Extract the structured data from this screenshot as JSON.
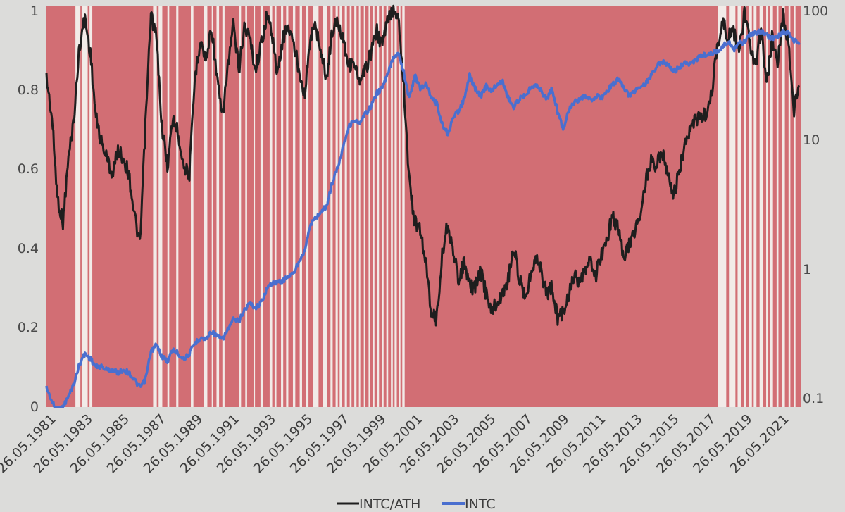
{
  "chart_data": {
    "type": "line",
    "title": "",
    "xlabel": "",
    "ylabel": "",
    "left_axis": {
      "ticks": [
        "0",
        "0.2",
        "0.4",
        "0.6",
        "0.8",
        "1"
      ],
      "ylim": [
        0,
        1
      ]
    },
    "right_axis": {
      "scale": "log",
      "ticks": [
        "0.1",
        "1",
        "10",
        "100"
      ],
      "ylim": [
        0.1,
        100
      ]
    },
    "x_tick_labels": [
      "26.05.1981",
      "26.05.1983",
      "26.05.1985",
      "26.05.1987",
      "26.05.1989",
      "26.05.1991",
      "26.05.1993",
      "26.05.1995",
      "26.05.1997",
      "26.05.1999",
      "26.05.2001",
      "26.05.2003",
      "26.05.2005",
      "26.05.2007",
      "26.05.2009",
      "26.05.2011",
      "26.05.2013",
      "26.05.2015",
      "26.05.2017",
      "26.05.2019",
      "26.05.2021"
    ],
    "xlim": [
      1981.0,
      2022.2
    ],
    "legend_position": "bottom",
    "background_color": "#d26e74",
    "gap_color": "#f2ebe8",
    "series": [
      {
        "name": "INTC/ATH",
        "axis": "left",
        "color": "#1e1e1e",
        "x": [
          1981.0,
          1981.3,
          1981.6,
          1981.9,
          1982.2,
          1982.5,
          1982.8,
          1983.1,
          1983.4,
          1983.7,
          1984.0,
          1984.3,
          1984.6,
          1984.9,
          1985.2,
          1985.5,
          1985.8,
          1986.1,
          1986.4,
          1986.7,
          1987.0,
          1987.3,
          1987.6,
          1987.9,
          1988.2,
          1988.5,
          1988.8,
          1989.1,
          1989.4,
          1989.7,
          1990.0,
          1990.3,
          1990.6,
          1990.9,
          1991.2,
          1991.5,
          1991.8,
          1992.1,
          1992.4,
          1992.7,
          1993.0,
          1993.3,
          1993.6,
          1993.9,
          1994.2,
          1994.5,
          1994.8,
          1995.1,
          1995.4,
          1995.7,
          1996.0,
          1996.3,
          1996.6,
          1996.9,
          1997.2,
          1997.5,
          1997.8,
          1998.1,
          1998.4,
          1998.7,
          1999.0,
          1999.3,
          1999.6,
          1999.9,
          2000.2,
          2000.5,
          2000.8,
          2001.1,
          2001.4,
          2001.7,
          2002.0,
          2002.3,
          2002.6,
          2002.9,
          2003.2,
          2003.5,
          2003.8,
          2004.1,
          2004.4,
          2004.7,
          2005.0,
          2005.3,
          2005.6,
          2005.9,
          2006.2,
          2006.5,
          2006.8,
          2007.1,
          2007.4,
          2007.7,
          2008.0,
          2008.3,
          2008.6,
          2008.9,
          2009.2,
          2009.5,
          2009.8,
          2010.1,
          2010.4,
          2010.7,
          2011.0,
          2011.3,
          2011.6,
          2011.9,
          2012.2,
          2012.5,
          2012.8,
          2013.1,
          2013.4,
          2013.7,
          2014.0,
          2014.3,
          2014.6,
          2014.9,
          2015.2,
          2015.5,
          2015.8,
          2016.1,
          2016.4,
          2016.7,
          2017.0,
          2017.3,
          2017.6,
          2017.9,
          2018.2,
          2018.5,
          2018.8,
          2019.1,
          2019.4,
          2019.7,
          2020.0,
          2020.3,
          2020.6,
          2020.9,
          2021.2,
          2021.5,
          2021.8,
          2022.1
        ],
        "y": [
          0.82,
          0.72,
          0.52,
          0.46,
          0.62,
          0.72,
          0.9,
          0.97,
          0.88,
          0.72,
          0.66,
          0.62,
          0.58,
          0.64,
          0.62,
          0.58,
          0.48,
          0.4,
          0.7,
          0.98,
          0.92,
          0.7,
          0.6,
          0.72,
          0.68,
          0.6,
          0.58,
          0.82,
          0.92,
          0.86,
          0.95,
          0.82,
          0.72,
          0.85,
          0.95,
          0.84,
          0.95,
          0.92,
          0.84,
          0.9,
          0.97,
          0.94,
          0.82,
          0.92,
          0.95,
          0.9,
          0.84,
          0.78,
          0.92,
          0.95,
          0.88,
          0.82,
          0.94,
          0.96,
          0.92,
          0.85,
          0.86,
          0.8,
          0.84,
          0.88,
          0.94,
          0.9,
          0.96,
          0.99,
          0.98,
          0.8,
          0.56,
          0.46,
          0.44,
          0.36,
          0.24,
          0.22,
          0.38,
          0.46,
          0.38,
          0.32,
          0.36,
          0.3,
          0.3,
          0.34,
          0.28,
          0.24,
          0.26,
          0.28,
          0.32,
          0.4,
          0.32,
          0.28,
          0.32,
          0.38,
          0.34,
          0.28,
          0.3,
          0.22,
          0.24,
          0.28,
          0.33,
          0.3,
          0.34,
          0.36,
          0.33,
          0.38,
          0.42,
          0.48,
          0.44,
          0.38,
          0.4,
          0.44,
          0.48,
          0.56,
          0.62,
          0.6,
          0.64,
          0.58,
          0.52,
          0.58,
          0.64,
          0.68,
          0.72,
          0.72,
          0.73,
          0.78,
          0.9,
          0.96,
          0.92,
          0.94,
          0.88,
          0.98,
          0.9,
          0.84,
          0.95,
          0.8,
          0.92,
          0.86,
          0.98,
          0.9,
          0.74,
          0.8
        ]
      },
      {
        "name": "INTC",
        "axis": "right",
        "color": "#4a6fcf",
        "x": [
          1981.0,
          1981.3,
          1981.6,
          1981.9,
          1982.2,
          1982.5,
          1982.8,
          1983.1,
          1983.4,
          1983.7,
          1984.0,
          1984.3,
          1984.6,
          1984.9,
          1985.2,
          1985.5,
          1985.8,
          1986.1,
          1986.4,
          1986.7,
          1987.0,
          1987.3,
          1987.6,
          1987.9,
          1988.2,
          1988.5,
          1988.8,
          1989.1,
          1989.4,
          1989.7,
          1990.0,
          1990.3,
          1990.6,
          1990.9,
          1991.2,
          1991.5,
          1991.8,
          1992.1,
          1992.4,
          1992.7,
          1993.0,
          1993.3,
          1993.6,
          1993.9,
          1994.2,
          1994.5,
          1994.8,
          1995.1,
          1995.4,
          1995.7,
          1996.0,
          1996.3,
          1996.6,
          1996.9,
          1997.2,
          1997.5,
          1997.8,
          1998.1,
          1998.4,
          1998.7,
          1999.0,
          1999.3,
          1999.6,
          1999.9,
          2000.2,
          2000.5,
          2000.8,
          2001.1,
          2001.4,
          2001.7,
          2002.0,
          2002.3,
          2002.6,
          2002.9,
          2003.2,
          2003.5,
          2003.8,
          2004.1,
          2004.4,
          2004.7,
          2005.0,
          2005.3,
          2005.6,
          2005.9,
          2006.2,
          2006.5,
          2006.8,
          2007.1,
          2007.4,
          2007.7,
          2008.0,
          2008.3,
          2008.6,
          2008.9,
          2009.2,
          2009.5,
          2009.8,
          2010.1,
          2010.4,
          2010.7,
          2011.0,
          2011.3,
          2011.6,
          2011.9,
          2012.2,
          2012.5,
          2012.8,
          2013.1,
          2013.4,
          2013.7,
          2014.0,
          2014.3,
          2014.6,
          2014.9,
          2015.2,
          2015.5,
          2015.8,
          2016.1,
          2016.4,
          2016.7,
          2017.0,
          2017.3,
          2017.6,
          2017.9,
          2018.2,
          2018.5,
          2018.8,
          2019.1,
          2019.4,
          2019.7,
          2020.0,
          2020.3,
          2020.6,
          2020.9,
          2021.2,
          2021.5,
          2021.8,
          2022.1
        ],
        "y": [
          0.14,
          0.11,
          0.09,
          0.1,
          0.12,
          0.15,
          0.21,
          0.25,
          0.23,
          0.2,
          0.2,
          0.19,
          0.19,
          0.18,
          0.19,
          0.18,
          0.16,
          0.14,
          0.16,
          0.26,
          0.29,
          0.24,
          0.22,
          0.27,
          0.25,
          0.23,
          0.25,
          0.3,
          0.33,
          0.32,
          0.37,
          0.34,
          0.32,
          0.38,
          0.45,
          0.44,
          0.53,
          0.6,
          0.55,
          0.6,
          0.75,
          0.85,
          0.85,
          0.88,
          0.95,
          1.0,
          1.25,
          1.5,
          2.3,
          2.6,
          2.9,
          3.2,
          4.8,
          6.2,
          9.0,
          12.5,
          14.0,
          13.0,
          15.5,
          17.5,
          22.0,
          24.0,
          30.0,
          40.0,
          45.0,
          32.0,
          20.0,
          30.0,
          24.0,
          26.0,
          21.0,
          18.5,
          13.0,
          11.0,
          14.5,
          16.5,
          20.0,
          30.0,
          24.0,
          21.0,
          25.0,
          23.0,
          26.0,
          27.0,
          20.5,
          17.5,
          20.0,
          21.5,
          24.0,
          26.0,
          23.0,
          20.0,
          24.0,
          16.0,
          12.0,
          16.5,
          19.0,
          19.5,
          21.0,
          19.5,
          21.0,
          20.5,
          23.0,
          26.0,
          28.0,
          25.0,
          21.0,
          23.0,
          25.0,
          26.0,
          30.5,
          35.0,
          38.5,
          36.0,
          32.0,
          34.0,
          37.0,
          36.0,
          39.0,
          42.0,
          43.0,
          44.0,
          46.0,
          49.0,
          54.0,
          47.0,
          52.0,
          53.0,
          60.0,
          62.0,
          65.0,
          60.0,
          57.0,
          59.0,
          64.0,
          62.0,
          55.0,
          51.0
        ]
      }
    ],
    "gaps": [
      [
        1982.58,
        1982.85
      ],
      [
        1982.92,
        1983.25
      ],
      [
        1983.35,
        1983.5
      ],
      [
        1986.82,
        1987.02
      ],
      [
        1987.12,
        1987.32
      ],
      [
        1987.6,
        1987.7
      ],
      [
        1988.08,
        1988.2
      ],
      [
        1988.88,
        1989.02
      ],
      [
        1989.6,
        1989.78
      ],
      [
        1990.02,
        1990.1
      ],
      [
        1990.28,
        1990.42
      ],
      [
        1990.6,
        1990.72
      ],
      [
        1991.5,
        1991.62
      ],
      [
        1991.85,
        1991.95
      ],
      [
        1992.3,
        1992.38
      ],
      [
        1992.68,
        1992.8
      ],
      [
        1993.18,
        1993.32
      ],
      [
        1993.45,
        1993.55
      ],
      [
        1993.8,
        1993.92
      ],
      [
        1994.08,
        1994.2
      ],
      [
        1994.45,
        1994.58
      ],
      [
        1994.82,
        1994.95
      ],
      [
        1995.15,
        1995.3
      ],
      [
        1995.55,
        1995.85
      ],
      [
        1996.1,
        1996.3
      ],
      [
        1996.5,
        1996.62
      ],
      [
        1996.78,
        1996.9
      ],
      [
        1997.0,
        1997.12
      ],
      [
        1997.28,
        1997.4
      ],
      [
        1997.55,
        1997.65
      ],
      [
        1997.8,
        1997.92
      ],
      [
        1998.05,
        1998.12
      ],
      [
        1998.32,
        1998.4
      ],
      [
        1998.58,
        1998.66
      ],
      [
        1998.82,
        1998.9
      ],
      [
        1999.05,
        1999.15
      ],
      [
        1999.3,
        1999.4
      ],
      [
        1999.55,
        1999.65
      ],
      [
        1999.8,
        1999.9
      ],
      [
        2000.0,
        2000.12
      ],
      [
        2000.22,
        2000.32
      ],
      [
        2000.42,
        2000.55
      ],
      [
        2017.65,
        2018.1
      ],
      [
        2018.25,
        2018.6
      ],
      [
        2018.72,
        2018.9
      ],
      [
        2019.05,
        2019.2
      ],
      [
        2019.35,
        2019.5
      ],
      [
        2019.6,
        2019.75
      ],
      [
        2019.92,
        2020.1
      ],
      [
        2020.28,
        2020.35
      ],
      [
        2020.5,
        2020.65
      ],
      [
        2020.85,
        2020.95
      ],
      [
        2021.15,
        2021.3
      ],
      [
        2021.5,
        2021.6
      ],
      [
        2021.78,
        2021.88
      ]
    ]
  }
}
